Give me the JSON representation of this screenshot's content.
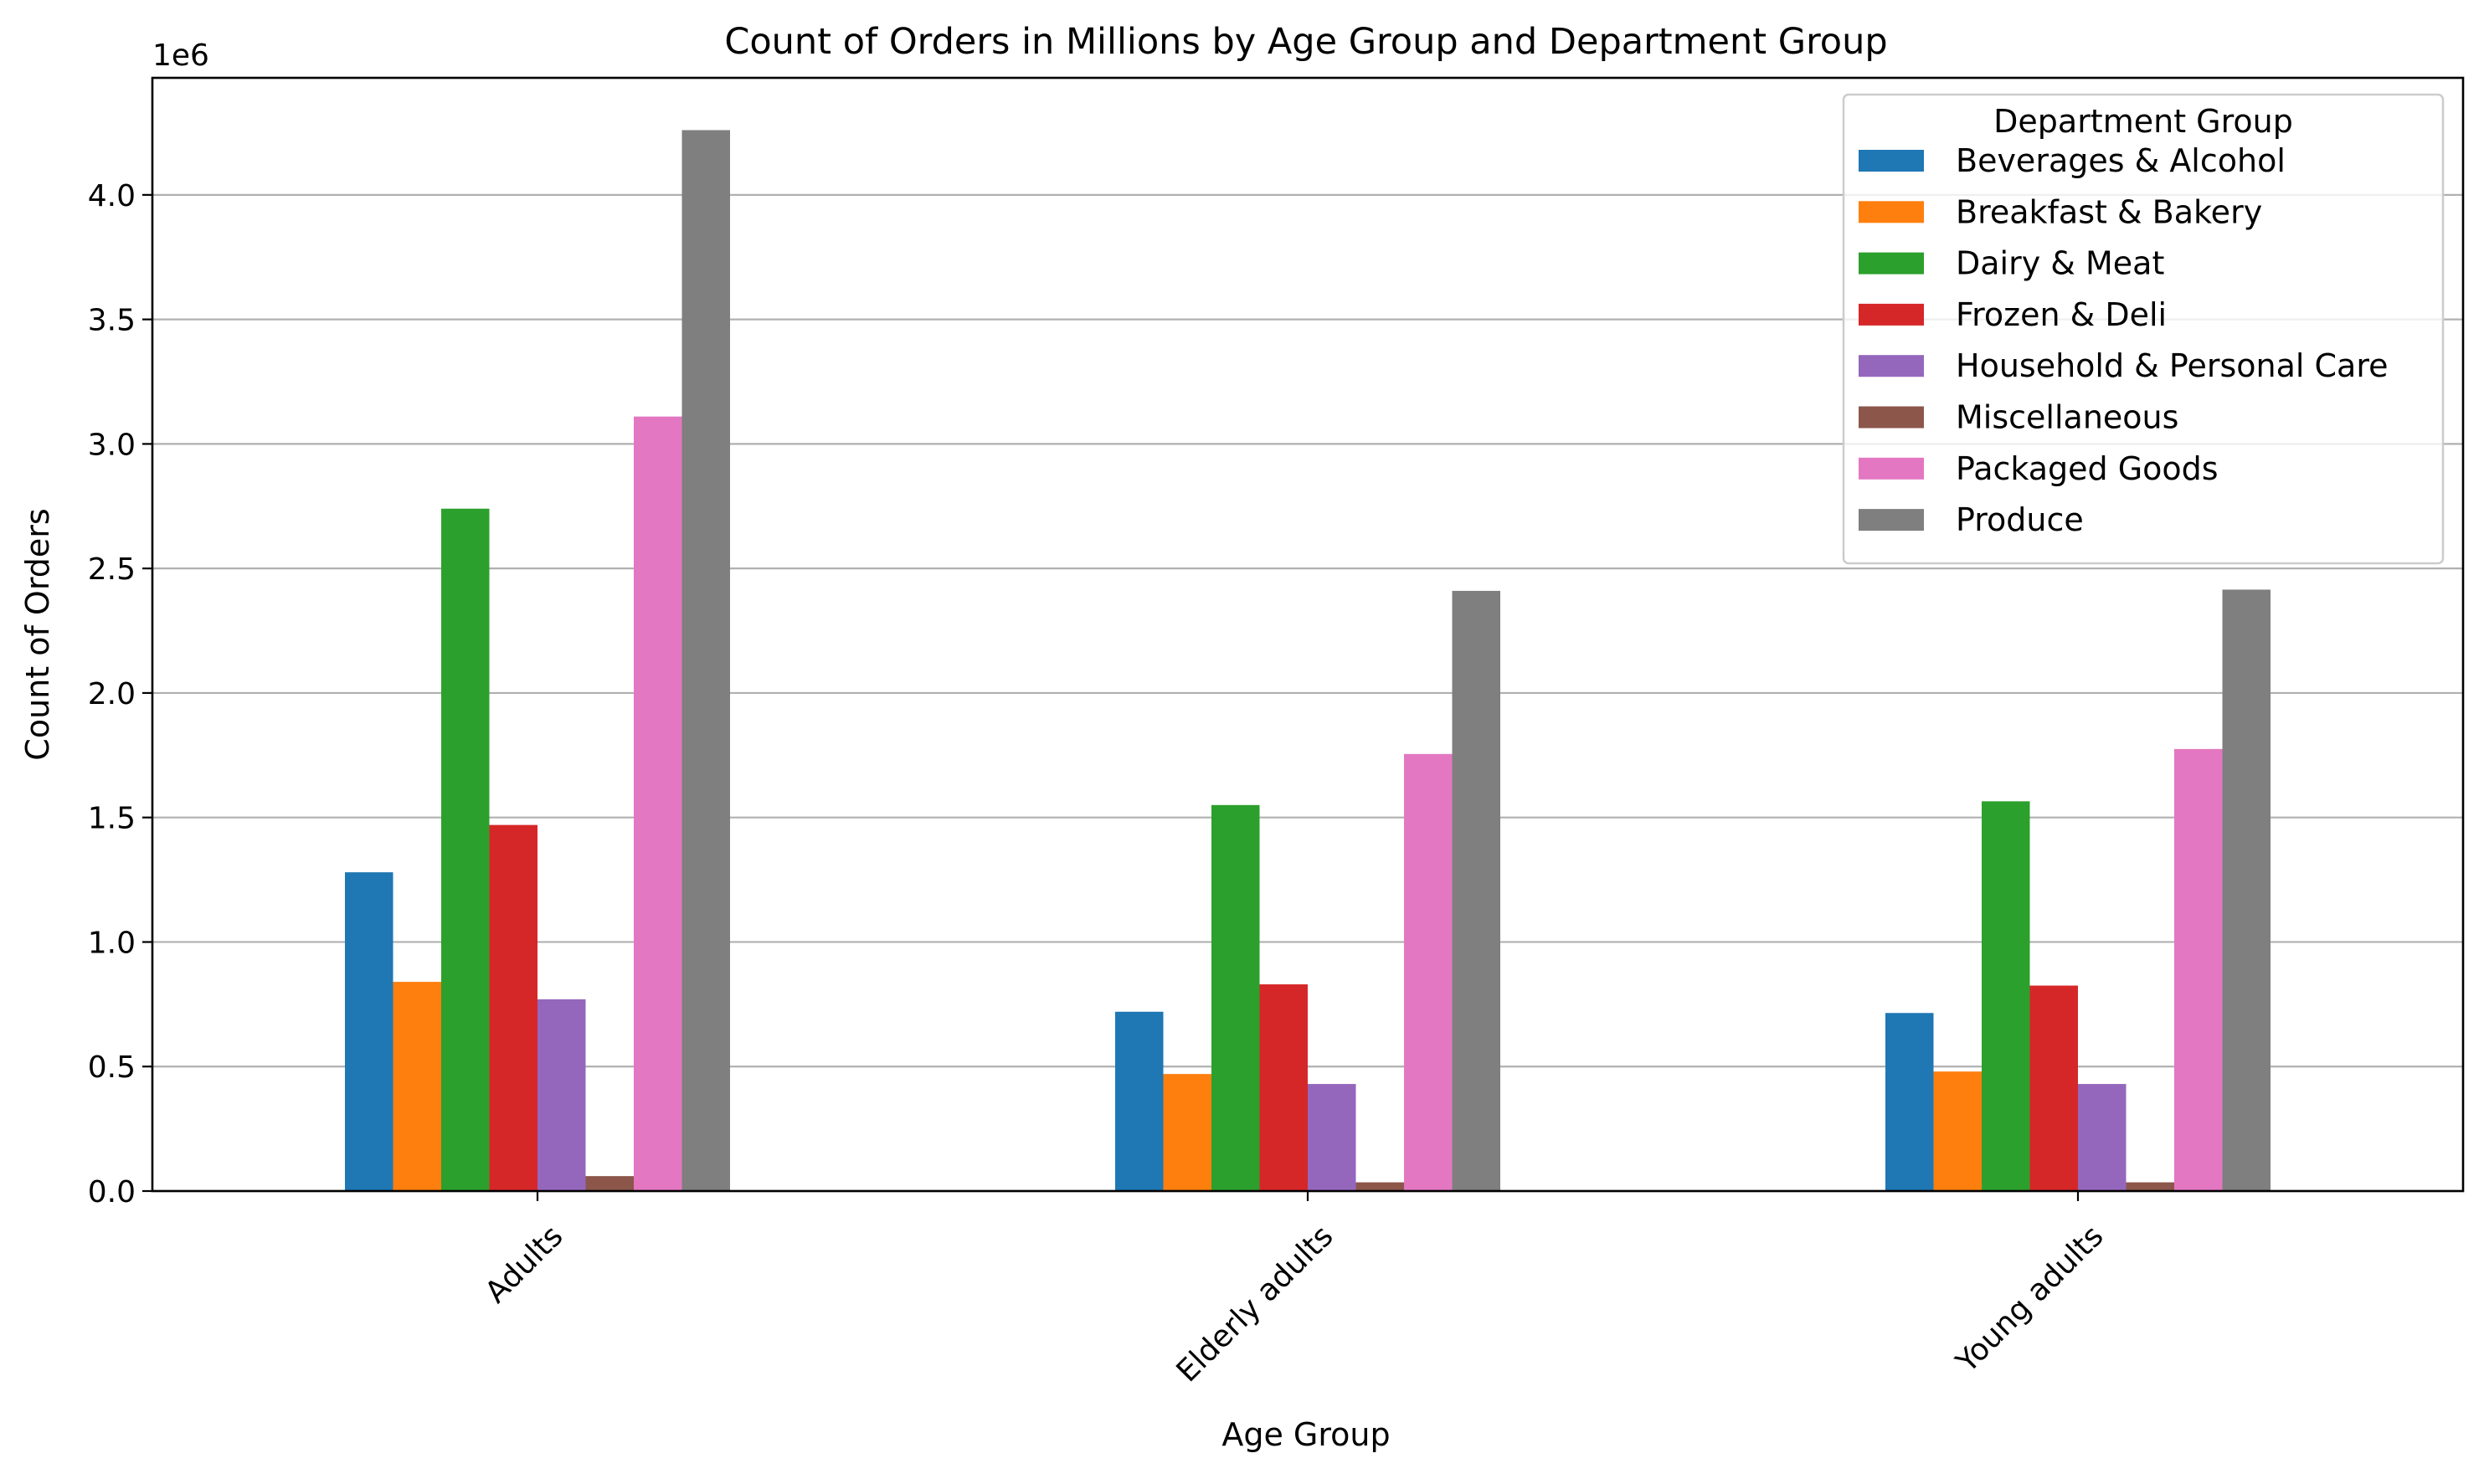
{
  "chart_data": {
    "type": "bar",
    "title": "Count of Orders in Millions by Age Group and Department Group",
    "xlabel": "Age Group",
    "ylabel": "Count of Orders",
    "offset_text": "1e6",
    "y_multiplier": 1000000,
    "ylim": [
      0,
      4.47
    ],
    "yticks": [
      0.0,
      0.5,
      1.0,
      1.5,
      2.0,
      2.5,
      3.0,
      3.5,
      4.0
    ],
    "ytick_labels": [
      "0.0",
      "0.5",
      "1.0",
      "1.5",
      "2.0",
      "2.5",
      "3.0",
      "3.5",
      "4.0"
    ],
    "grid": "horizontal",
    "legend_title": "Department Group",
    "legend_position": "top-right",
    "categories": [
      "Adults",
      "Elderly adults",
      "Young adults"
    ],
    "series": [
      {
        "name": "Beverages & Alcohol",
        "color": "#1f77b4",
        "values": [
          1.28,
          0.72,
          0.715
        ]
      },
      {
        "name": "Breakfast & Bakery",
        "color": "#ff7f0e",
        "values": [
          0.84,
          0.47,
          0.48
        ]
      },
      {
        "name": "Dairy & Meat",
        "color": "#2ca02c",
        "values": [
          2.74,
          1.55,
          1.565
        ]
      },
      {
        "name": "Frozen & Deli",
        "color": "#d62728",
        "values": [
          1.47,
          0.83,
          0.825
        ]
      },
      {
        "name": "Household & Personal Care",
        "color": "#9467bd",
        "values": [
          0.77,
          0.43,
          0.43
        ]
      },
      {
        "name": "Miscellaneous",
        "color": "#8c564b",
        "values": [
          0.06,
          0.035,
          0.035
        ]
      },
      {
        "name": "Packaged Goods",
        "color": "#e377c2",
        "values": [
          3.11,
          1.755,
          1.775
        ]
      },
      {
        "name": "Produce",
        "color": "#7f7f7f",
        "values": [
          4.26,
          2.41,
          2.415
        ]
      }
    ]
  }
}
